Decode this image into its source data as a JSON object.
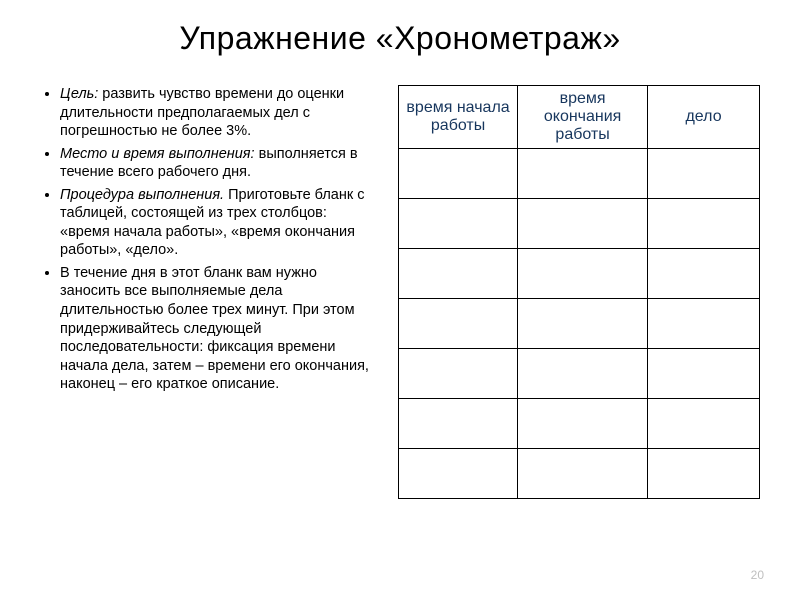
{
  "title": "Упражнение «Хронометраж»",
  "bullets": [
    {
      "lead": "Цель:",
      "lead_style": "italic",
      "rest": " развить чувство времени до оценки длительности предполагаемых дел с погрешностью не более 3%."
    },
    {
      "lead": "Место и время выполнения:",
      "lead_style": "italic",
      "rest": " выполняется в течение всего рабочего дня."
    },
    {
      "lead": "Процедура выполнения.",
      "lead_style": "italic",
      "rest": " Приготовьте бланк с таблицей, состоящей из трех столбцов: «время начала работы», «время окончания работы», «дело»."
    },
    {
      "lead": "",
      "lead_style": "",
      "rest": "В течение дня в этот бланк вам нужно заносить все выполняемые дела длительностью более трех минут. При этом придерживайтесь следующей последовательности: фиксация времени начала дела, затем – времени его окончания, наконец – его краткое описание."
    }
  ],
  "table": {
    "columns": [
      "время начала работы",
      "время окончания работы",
      "дело"
    ],
    "header_color": "#17365d",
    "header_fontsize": 16,
    "border_color": "#000000",
    "empty_rows": 7,
    "col_widths_percent": [
      33,
      36,
      31
    ]
  },
  "page_number": "20",
  "colors": {
    "background": "#ffffff",
    "text": "#000000",
    "page_num": "#bfbfbf"
  }
}
